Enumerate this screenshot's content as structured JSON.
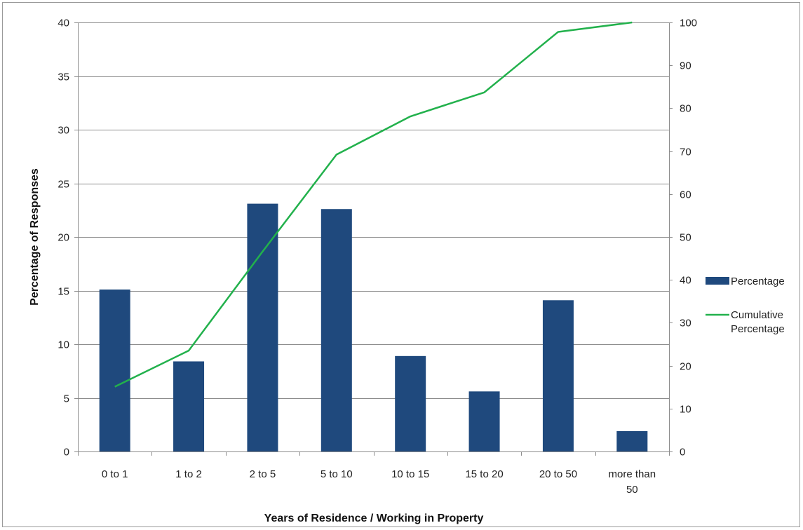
{
  "chart_data": {
    "type": "bar",
    "title": "",
    "xlabel": "Years of Residence / Working in Property",
    "ylabel": "Percentage of Responses",
    "y2label": "",
    "categories": [
      "0 to 1",
      "1 to 2",
      "2 to 5",
      "5 to 10",
      "10 to 15",
      "15 to 20",
      "20 to 50",
      "more than 50"
    ],
    "category_lines": [
      [
        "0 to 1"
      ],
      [
        "1 to 2"
      ],
      [
        "2 to 5"
      ],
      [
        "5 to 10"
      ],
      [
        "10 to 15"
      ],
      [
        "15 to 20"
      ],
      [
        "20 to 50"
      ],
      [
        "more than",
        "50"
      ]
    ],
    "ylim": [
      0,
      40
    ],
    "yticks": [
      0,
      5,
      10,
      15,
      20,
      25,
      30,
      35,
      40
    ],
    "y2lim": [
      0,
      100
    ],
    "y2ticks": [
      0,
      10,
      20,
      30,
      40,
      50,
      60,
      70,
      80,
      90,
      100
    ],
    "grid": true,
    "legend_position": "right",
    "series": [
      {
        "name": "Percentage",
        "type": "bar",
        "axis": "left",
        "color": "#1f497d",
        "values": [
          15.1,
          8.4,
          23.1,
          22.6,
          8.9,
          5.6,
          14.1,
          1.9
        ]
      },
      {
        "name": "Cumulative Percentage",
        "legend_lines": [
          "Cumulative",
          "Percentage"
        ],
        "type": "line",
        "axis": "right",
        "color": "#22b14c",
        "values": [
          15.1,
          23.5,
          46.6,
          69.2,
          78.1,
          83.7,
          97.8,
          100
        ]
      }
    ]
  }
}
